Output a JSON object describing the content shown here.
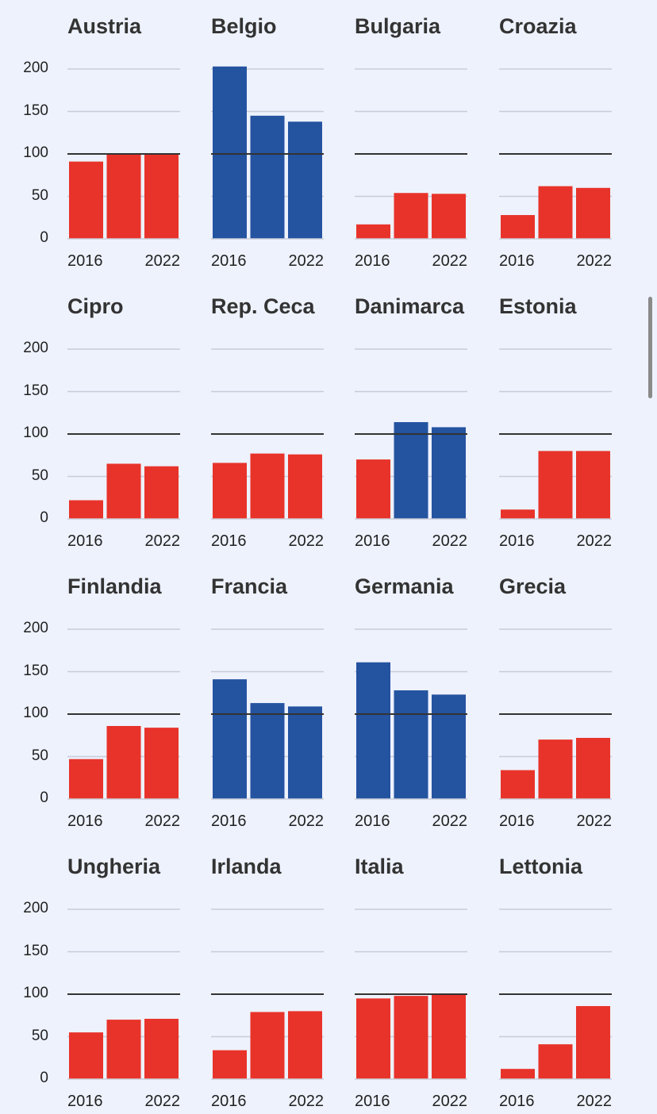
{
  "chart_data": {
    "type": "bar",
    "ylim": [
      0,
      200
    ],
    "yticks": [
      0,
      50,
      100,
      150,
      200
    ],
    "reference_line": 100,
    "x_labels": [
      "2016",
      "2022"
    ],
    "colors": {
      "below": "#e8332a",
      "above": "#2453a0",
      "grid": "#c8ccd8",
      "ref": "#333333"
    },
    "panels": [
      {
        "name": "Austria",
        "values": [
          91,
          100,
          100
        ]
      },
      {
        "name": "Belgio",
        "values": [
          203,
          145,
          138
        ]
      },
      {
        "name": "Bulgaria",
        "values": [
          17,
          54,
          53
        ]
      },
      {
        "name": "Croazia",
        "values": [
          28,
          62,
          60
        ]
      },
      {
        "name": "Cipro",
        "values": [
          22,
          65,
          62
        ]
      },
      {
        "name": "Rep. Ceca",
        "values": [
          66,
          77,
          76
        ]
      },
      {
        "name": "Danimarca",
        "values": [
          70,
          114,
          108
        ]
      },
      {
        "name": "Estonia",
        "values": [
          11,
          80,
          80
        ]
      },
      {
        "name": "Finlandia",
        "values": [
          47,
          86,
          84
        ]
      },
      {
        "name": "Francia",
        "values": [
          141,
          113,
          109
        ]
      },
      {
        "name": "Germania",
        "values": [
          161,
          128,
          123
        ]
      },
      {
        "name": "Grecia",
        "values": [
          34,
          70,
          72
        ]
      },
      {
        "name": "Ungheria",
        "values": [
          55,
          70,
          71
        ]
      },
      {
        "name": "Irlanda",
        "values": [
          34,
          79,
          80
        ]
      },
      {
        "name": "Italia",
        "values": [
          95,
          98,
          100
        ]
      },
      {
        "name": "Lettonia",
        "values": [
          12,
          41,
          86
        ]
      }
    ]
  }
}
